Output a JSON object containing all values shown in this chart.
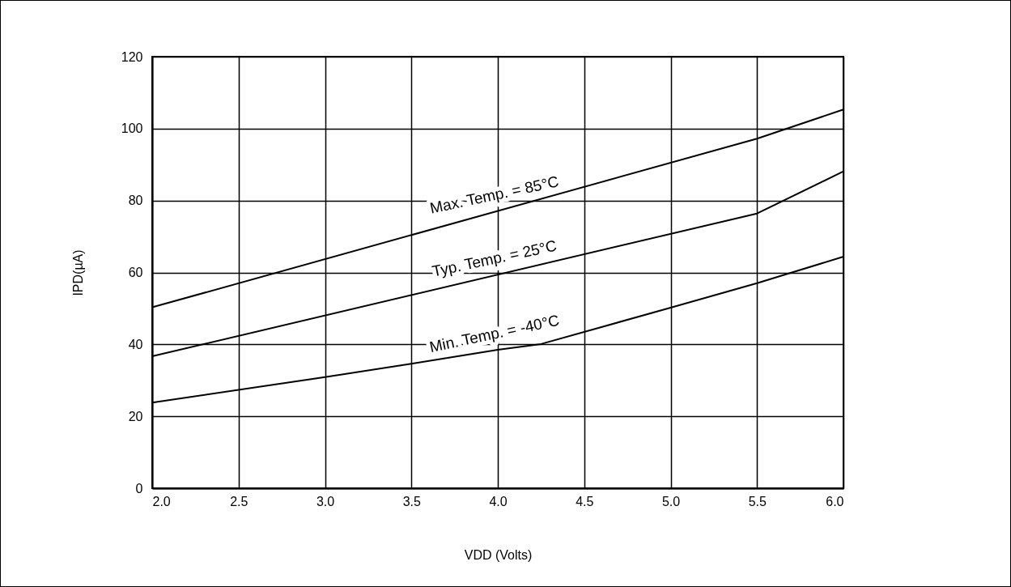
{
  "chart_data": {
    "type": "line",
    "xlabel": "VDD (Volts)",
    "ylabel": "IPD(µA)",
    "xlim": [
      2,
      6
    ],
    "xticks": [
      {
        "value": 2,
        "label": "2.0"
      },
      {
        "value": 2.5,
        "label": "2.5"
      },
      {
        "value": 3,
        "label": "3.0"
      },
      {
        "value": 3.5,
        "label": "3.5"
      },
      {
        "value": 4,
        "label": "4.0"
      },
      {
        "value": 4.5,
        "label": "4.5"
      },
      {
        "value": 5,
        "label": "5.0"
      },
      {
        "value": 5.5,
        "label": "5.5"
      },
      {
        "value": 6,
        "label": "6.0"
      }
    ],
    "ylim": [
      0,
      120
    ],
    "yticks": [
      0,
      20,
      40,
      60,
      80,
      100,
      120
    ],
    "grid": true,
    "marker": "none",
    "line_style": "solid",
    "series": [
      {
        "name": "Max. Temp. = 85°C",
        "color": "#000000",
        "x": [
          2,
          5.5,
          6
        ],
        "values": [
          50.3,
          97.2,
          105.3
        ]
      },
      {
        "name": "Typ. Temp. = 25°C",
        "color": "#000000",
        "x": [
          2,
          5.5,
          6
        ],
        "values": [
          36.7,
          76.4,
          88.1
        ]
      },
      {
        "name": "Min. Temp. = -40°C",
        "color": "#000000",
        "x": [
          2,
          3,
          3.5,
          4,
          4.25,
          5,
          5.5,
          6
        ],
        "values": [
          23.8,
          30.9,
          34.6,
          38.5,
          40.1,
          50.2,
          57.0,
          64.4
        ]
      }
    ]
  }
}
